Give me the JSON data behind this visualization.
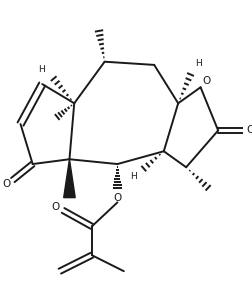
{
  "bg": "#ffffff",
  "lc": "#1a1a1a",
  "lw": 1.4,
  "figsize": [
    2.53,
    2.83
  ],
  "dpi": 100,
  "xlim": [
    0.0,
    253.0
  ],
  "ylim": [
    0.0,
    283.0
  ]
}
